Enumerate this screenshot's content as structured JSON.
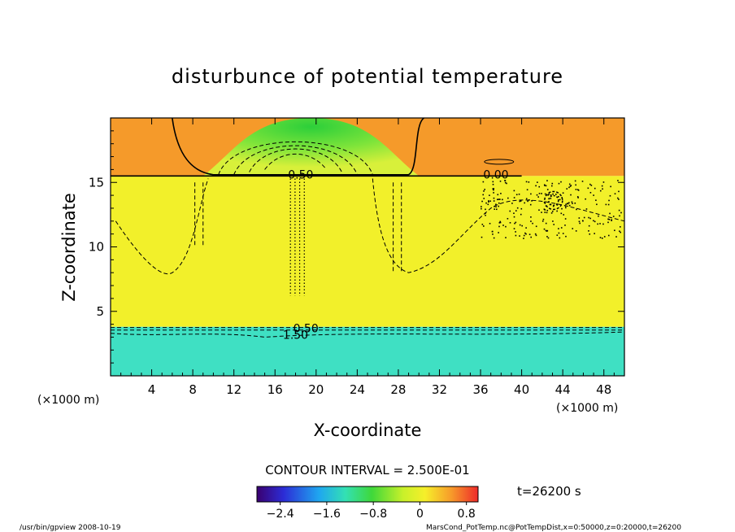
{
  "chart_data": {
    "type": "heatmap",
    "title": "disturbunce of potential temperature",
    "xlabel": "X-coordinate",
    "ylabel": "Z-coordinate",
    "x_unit_left": "(×1000 m)",
    "x_unit_right": "(×1000 m)",
    "xlim": [
      0,
      50
    ],
    "ylim": [
      0,
      20
    ],
    "x_ticks": [
      "4",
      "8",
      "12",
      "16",
      "20",
      "24",
      "28",
      "32",
      "36",
      "40",
      "44",
      "48"
    ],
    "y_ticks": [
      "5",
      "10",
      "15"
    ],
    "contour_interval": "CONTOUR INTERVAL = 2.500E-01",
    "time_label": "t=26200 s",
    "colorbar": {
      "min": -2.8,
      "max": 1.0,
      "tick_labels": [
        "−2.4",
        "−1.6",
        "−0.8",
        "0",
        "0.8"
      ]
    },
    "contour_labels": [
      {
        "text": "0.50",
        "x": 18.5,
        "z": 15.6
      },
      {
        "text": "0.00",
        "x": 37.5,
        "z": 15.6
      },
      {
        "text": "0.50",
        "x": 19.0,
        "z": 3.7
      },
      {
        "text": "1.50",
        "x": 18.0,
        "z": 3.2
      }
    ],
    "regions": [
      {
        "name": "lower layer",
        "z_range": [
          0,
          3.8
        ],
        "value": -1.3
      },
      {
        "name": "middle layer",
        "z_range": [
          3.8,
          15.5
        ],
        "value": 0.1
      },
      {
        "name": "upper layer",
        "z_range": [
          15.5,
          20
        ],
        "value": 0.55
      },
      {
        "name": "central cold dome",
        "x_range": [
          9,
          30
        ],
        "z_range": [
          15.5,
          20
        ],
        "value": -0.7
      }
    ]
  },
  "footer_left": "/usr/bin/gpview   2008-10-19",
  "footer_right": "MarsCond_PotTemp.nc@PotTempDist,x=0:50000,z=0:20000,t=26200",
  "colors": {
    "lower": "#3fe0c3",
    "middle": "#f2f02a",
    "upper": "#f59a2a",
    "dome": "#34d63f"
  }
}
